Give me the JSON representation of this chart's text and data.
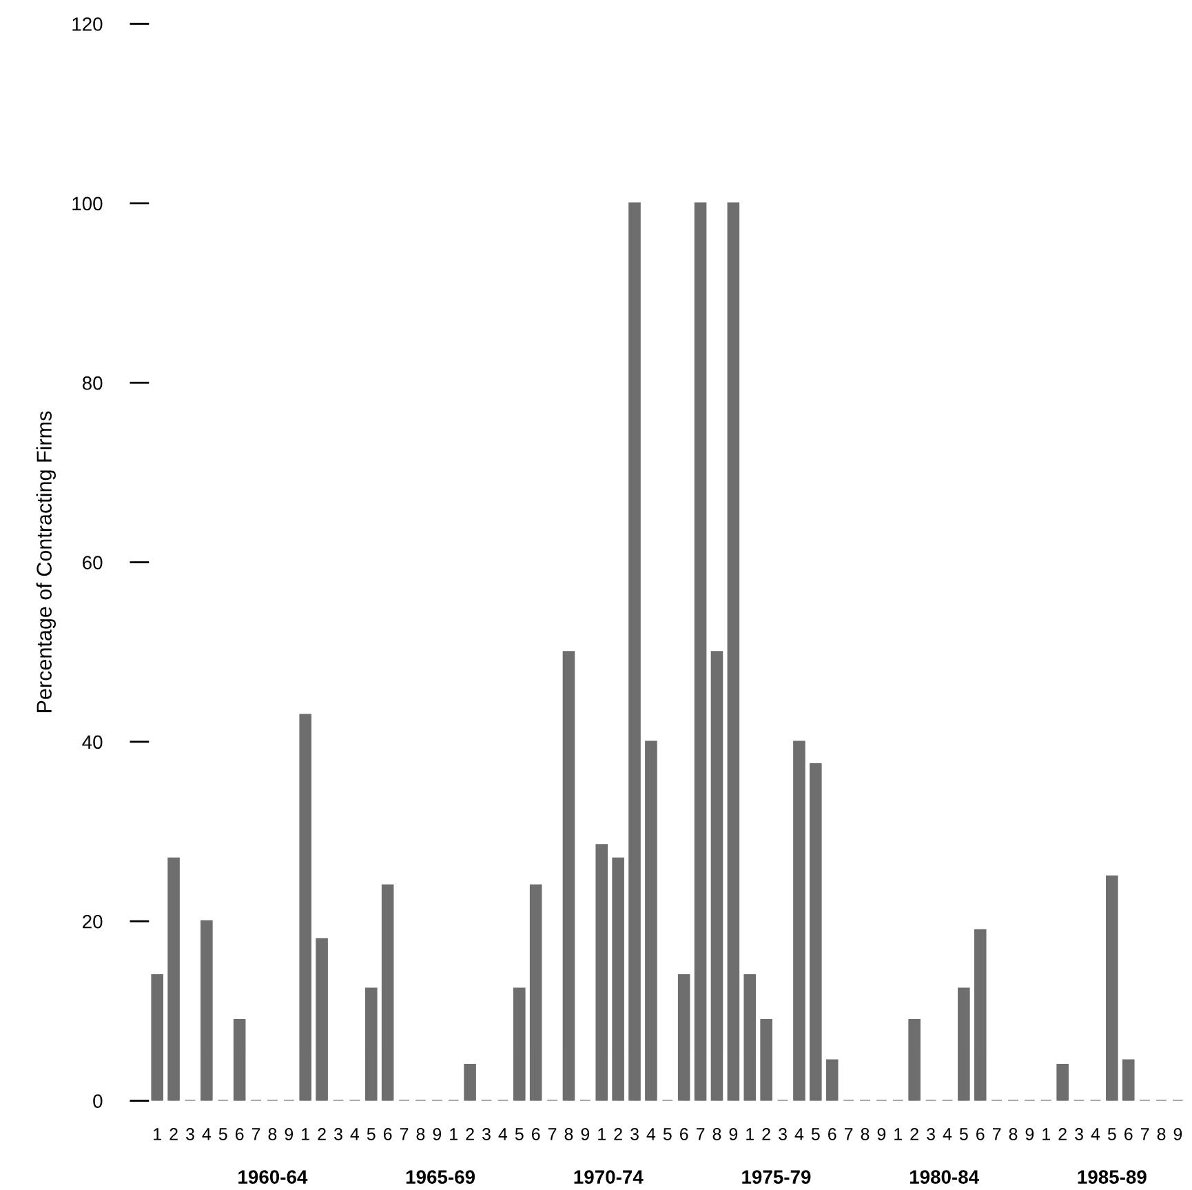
{
  "chart_data": {
    "type": "bar",
    "ylabel": "Percentage of Contracting Firms",
    "categories": [
      "1",
      "2",
      "3",
      "4",
      "5",
      "6",
      "7",
      "8",
      "9",
      "1",
      "2",
      "3",
      "4",
      "5",
      "6",
      "7",
      "8",
      "9",
      "1",
      "2",
      "3",
      "4",
      "5",
      "6",
      "7",
      "8",
      "9",
      "1",
      "2",
      "3",
      "4",
      "5",
      "6",
      "7",
      "8",
      "9",
      "1",
      "2",
      "3",
      "4",
      "5",
      "6",
      "7",
      "8",
      "9",
      "1",
      "2",
      "3",
      "4",
      "5",
      "6",
      "7",
      "8",
      "9",
      "1",
      "2",
      "3",
      "4",
      "5",
      "6",
      "7",
      "8",
      "9"
    ],
    "values": [
      14,
      27,
      0,
      20,
      0,
      9,
      0,
      0,
      0,
      43,
      18,
      0,
      0,
      12.5,
      24,
      0,
      0,
      0,
      0,
      4,
      0,
      0,
      12.5,
      24,
      0,
      50,
      0,
      28.5,
      27,
      100,
      40,
      0,
      14,
      100,
      50,
      100,
      14,
      9,
      0,
      40,
      37.5,
      4.5,
      0,
      0,
      0,
      0,
      9,
      0,
      0,
      12.5,
      19,
      0,
      0,
      0,
      0,
      4,
      0,
      0,
      25,
      4.5,
      0,
      0,
      0
    ],
    "color": "#6e6e6e",
    "ylim": [
      0,
      120
    ],
    "yticks": [
      0,
      20,
      40,
      60,
      80,
      100,
      120
    ],
    "grid": false,
    "annotations": [
      "1960-64",
      "1965-69",
      "1970-74",
      "1975-79",
      "1980-84",
      "1985-89"
    ]
  }
}
